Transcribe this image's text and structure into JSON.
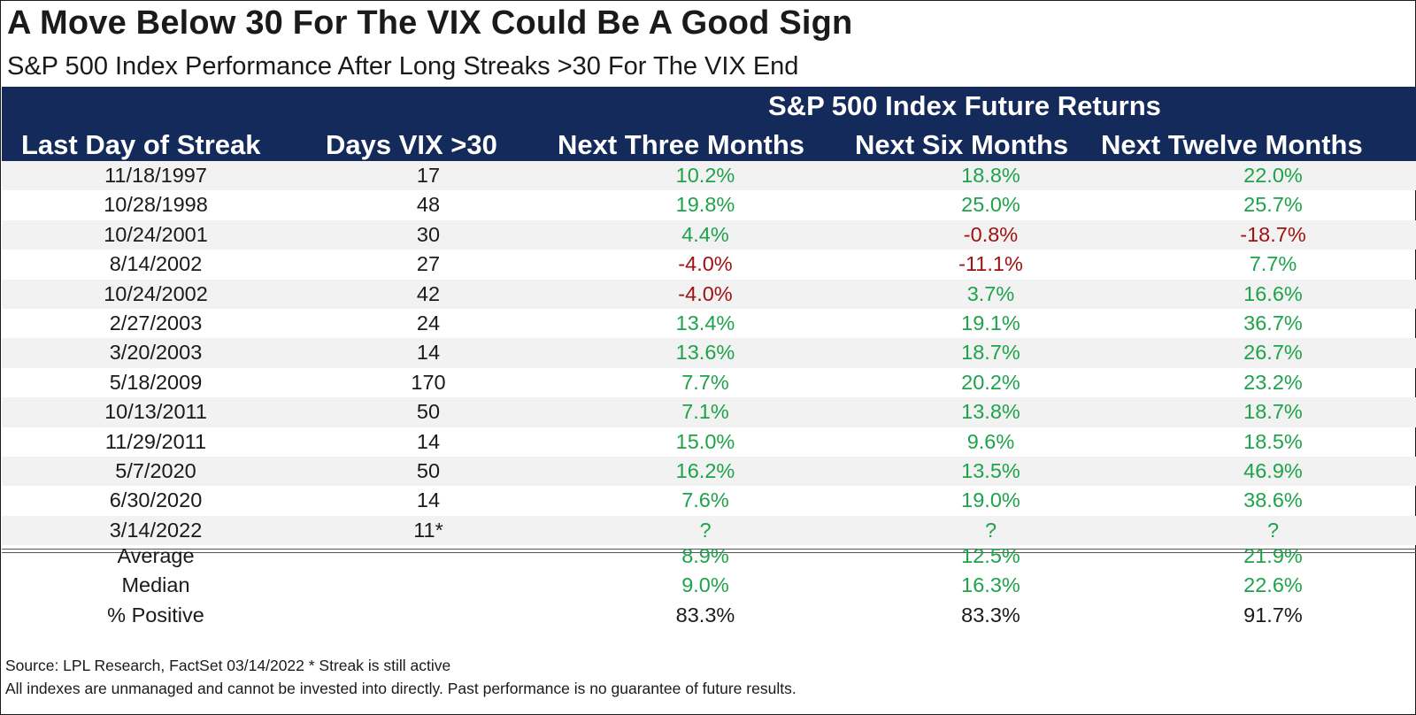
{
  "chart_data": {
    "type": "table",
    "title": "A Move Below 30 For The VIX Could Be A Good Sign",
    "subtitle": "S&P 500 Index Performance After Long Streaks >30 For The VIX End",
    "group_header": "S&P 500 Index Future Returns",
    "columns": [
      "Last Day of Streak",
      "Days VIX >30",
      "Next Three Months",
      "Next Six Months",
      "Next Twelve Months"
    ],
    "rows": [
      [
        "11/18/1997",
        "17",
        "10.2%",
        "18.8%",
        "22.0%"
      ],
      [
        "10/28/1998",
        "48",
        "19.8%",
        "25.0%",
        "25.7%"
      ],
      [
        "10/24/2001",
        "30",
        "4.4%",
        "-0.8%",
        "-18.7%"
      ],
      [
        "8/14/2002",
        "27",
        "-4.0%",
        "-11.1%",
        "7.7%"
      ],
      [
        "10/24/2002",
        "42",
        "-4.0%",
        "3.7%",
        "16.6%"
      ],
      [
        "2/27/2003",
        "24",
        "13.4%",
        "19.1%",
        "36.7%"
      ],
      [
        "3/20/2003",
        "14",
        "13.6%",
        "18.7%",
        "26.7%"
      ],
      [
        "5/18/2009",
        "170",
        "7.7%",
        "20.2%",
        "23.2%"
      ],
      [
        "10/13/2011",
        "50",
        "7.1%",
        "13.8%",
        "18.7%"
      ],
      [
        "11/29/2011",
        "14",
        "15.0%",
        "9.6%",
        "18.5%"
      ],
      [
        "5/7/2020",
        "50",
        "16.2%",
        "13.5%",
        "46.9%"
      ],
      [
        "6/30/2020",
        "14",
        "7.6%",
        "19.0%",
        "38.6%"
      ],
      [
        "3/14/2022",
        "11*",
        "?",
        "?",
        "?"
      ]
    ],
    "summary": [
      [
        "Average",
        "",
        "8.9%",
        "12.5%",
        "21.9%"
      ],
      [
        "Median",
        "",
        "9.0%",
        "16.3%",
        "22.6%"
      ],
      [
        "% Positive",
        "",
        "83.3%",
        "83.3%",
        "91.7%"
      ]
    ],
    "source_note": "Source: LPL Research, FactSet 03/14/2022   * Streak is still active",
    "disclaimer": "All indexes are unmanaged and cannot be invested into directly. Past performance is no guarantee of future results."
  },
  "colors": {
    "header_bg": "#142a5b",
    "positive": "#1ea34a",
    "negative": "#a01212",
    "shade": "#f2f2f2"
  }
}
